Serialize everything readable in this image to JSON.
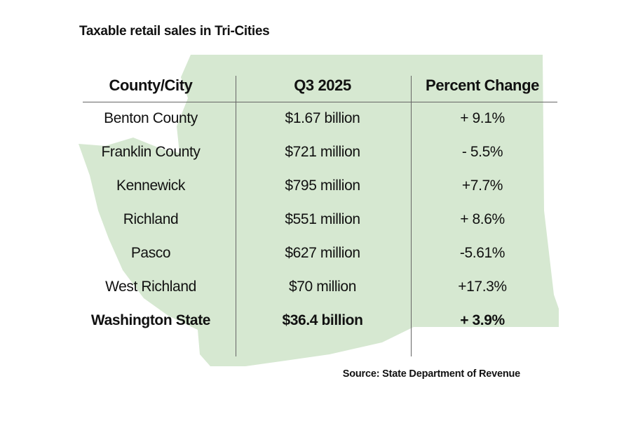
{
  "title": "Taxable retail sales in Tri-Cities",
  "source": "Source: State Department of Revenue",
  "map_color": "#d6e8d1",
  "chart_data": {
    "type": "table",
    "title": "Taxable retail sales in Tri-Cities",
    "columns": [
      "County/City",
      "Q3 2025",
      "Percent Change"
    ],
    "rows": [
      [
        "Benton County",
        "$1.67 billion",
        "+ 9.1%"
      ],
      [
        "Franklin County",
        "$721 million",
        "- 5.5%"
      ],
      [
        "Kennewick",
        "$795 million",
        "+7.7%"
      ],
      [
        "Richland",
        "$551 million",
        "+ 8.6%"
      ],
      [
        "Pasco",
        "$627 million",
        "-5.61%"
      ],
      [
        "West Richland",
        "$70 million",
        "+17.3%"
      ],
      [
        "Washington State",
        "$36.4 billion",
        "+ 3.9%"
      ]
    ],
    "bold_rows": [
      6
    ],
    "background": "Washington State map silhouette"
  }
}
